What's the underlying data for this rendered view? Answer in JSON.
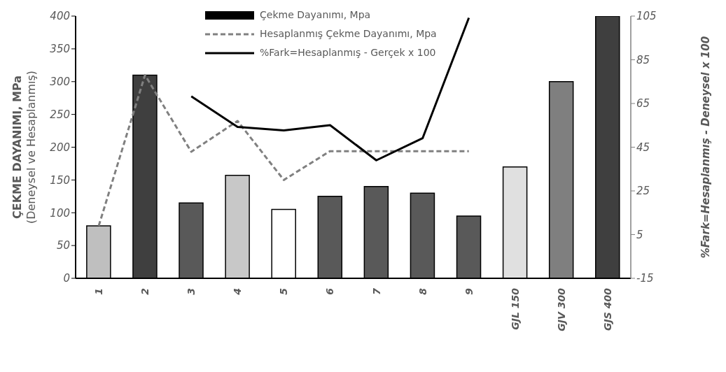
{
  "chart_data": {
    "type": "bar",
    "categories": [
      "1",
      "2",
      "3",
      "4",
      "5",
      "6",
      "7",
      "8",
      "9",
      "GJL 150",
      "GJV 300",
      "GJS 400"
    ],
    "series": [
      {
        "name": "Çekme Dayanımı, Mpa",
        "color": "#000000",
        "colors": [
          "#bfbfbf",
          "#3f3f3f",
          "#595959",
          "#c8c8c8",
          "#ffffff",
          "#595959",
          "#595959",
          "#595959",
          "#595959",
          "#e0e0e0",
          "#7f7f7f",
          "#3f3f3f"
        ],
        "values": [
          80,
          310,
          115,
          157,
          105,
          125,
          140,
          130,
          95,
          170,
          300,
          400
        ]
      },
      {
        "name": "Hesaplanmış Çekme Dayanımı, Mpa",
        "type": "line",
        "color": "#808080",
        "line_style": "dashed",
        "values": [
          80,
          310,
          193,
          240,
          150,
          194,
          194,
          194,
          194,
          null,
          null,
          null
        ]
      },
      {
        "name": "%Fark=Hesaplanmış - Gerçek x 100",
        "type": "line",
        "color": "#000000",
        "line_style": "solid",
        "axis": "y2",
        "values": [
          null,
          null,
          68.3,
          54.3,
          52.7,
          55.1,
          39,
          49.1,
          104.2,
          null,
          null,
          null
        ]
      }
    ],
    "ylabel": "ÇEKME DAYANIMI, MPa\n(Deneysel ve Hesaplanmış)",
    "y2label": "%Fark=Hesaplanmış - Deneysel x 100",
    "ylim": [
      0,
      400
    ],
    "yticks": [
      0,
      50,
      100,
      150,
      200,
      250,
      300,
      350,
      400
    ],
    "y2lim": [
      -15,
      105
    ],
    "y2ticks": [
      -15,
      5,
      25,
      45,
      65,
      85,
      105
    ],
    "legend": "top",
    "grid": false,
    "marker": "none"
  }
}
